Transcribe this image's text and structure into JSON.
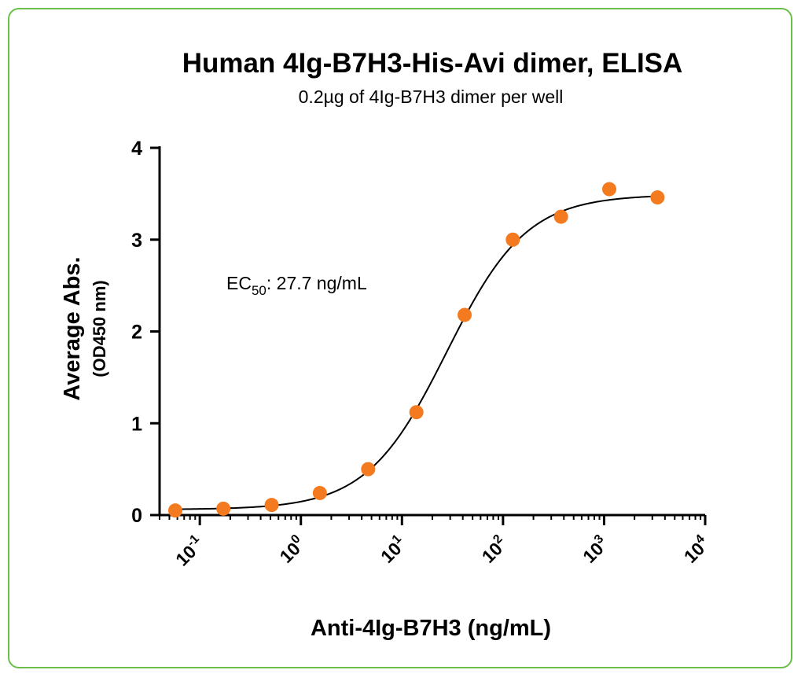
{
  "colors": {
    "frame": "#6abf4b",
    "points": "#f47a20",
    "curve": "#000000",
    "axis": "#000000"
  },
  "chart_data": {
    "type": "scatter",
    "title": "Human 4Ig-B7H3-His-Avi dimer, ELISA",
    "subtitle": "0.2µg of 4Ig-B7H3 dimer per well",
    "xlabel": "Anti-4Ig-B7H3 (ng/mL)",
    "ylabel": "Average Abs.",
    "ylabel_sub": "(OD450 nm)",
    "xscale": "log",
    "xlim": [
      0.04,
      10000
    ],
    "ylim": [
      0,
      4
    ],
    "yticks": [
      "0",
      "1",
      "2",
      "3",
      "4"
    ],
    "xticks": [
      {
        "value": 0.1,
        "base": "10",
        "exp": "-1"
      },
      {
        "value": 1,
        "base": "10",
        "exp": "0"
      },
      {
        "value": 10,
        "base": "10",
        "exp": "1"
      },
      {
        "value": 100,
        "base": "10",
        "exp": "2"
      },
      {
        "value": 1000,
        "base": "10",
        "exp": "3"
      },
      {
        "value": 10000,
        "base": "10",
        "exp": "4"
      }
    ],
    "series": [
      {
        "x": [
          0.0572,
          0.171,
          0.514,
          1.54,
          4.63,
          13.9,
          41.7,
          125,
          375,
          1125,
          3375
        ],
        "y": [
          0.05,
          0.07,
          0.11,
          0.24,
          0.5,
          1.12,
          2.18,
          3.0,
          3.25,
          3.55,
          3.46
        ]
      }
    ],
    "fit": {
      "bottom": 0.06,
      "top": 3.49,
      "ec50": 27.7,
      "hill": 1.1
    },
    "annotation": {
      "prefix": "EC",
      "sub": "50",
      "suffix": ": 27.7 ng/mL"
    },
    "grid": false,
    "legend": "none"
  }
}
